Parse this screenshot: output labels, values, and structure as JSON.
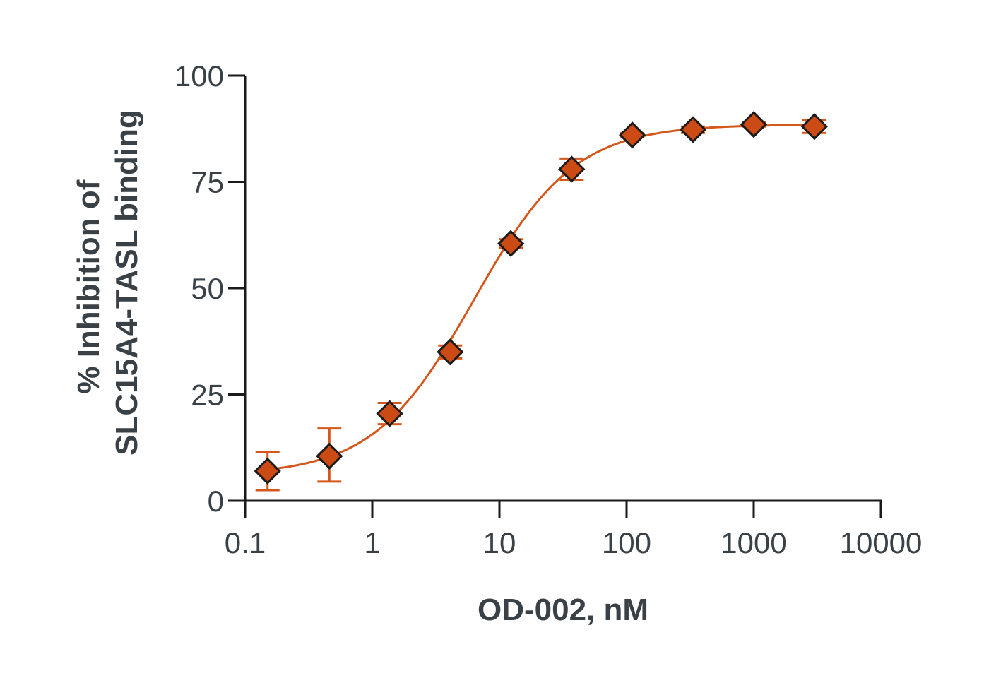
{
  "chart_data": {
    "type": "scatter",
    "xlabel": "OD-002, nM",
    "ylabel_lines": [
      "% Inhibition of",
      "SLC15A4-TASL binding"
    ],
    "x_scale": "log",
    "xlim": [
      0.1,
      10000
    ],
    "ylim": [
      0,
      100
    ],
    "x_ticks": [
      0.1,
      1,
      10,
      100,
      1000,
      10000
    ],
    "x_tick_labels": [
      "0.1",
      "1",
      "10",
      "100",
      "1000",
      "10000"
    ],
    "y_ticks": [
      0,
      25,
      50,
      75,
      100
    ],
    "y_tick_labels": [
      "0",
      "25",
      "50",
      "75",
      "100"
    ],
    "grid": false,
    "series": [
      {
        "marker": "diamond",
        "points": [
          {
            "x": 0.15,
            "y": 7,
            "err_low": 2.5,
            "err_high": 11.5
          },
          {
            "x": 0.46,
            "y": 10.5,
            "err_low": 4.5,
            "err_high": 17
          },
          {
            "x": 1.37,
            "y": 20.5,
            "err_low": 18,
            "err_high": 23
          },
          {
            "x": 4.1,
            "y": 35,
            "err_low": 33.5,
            "err_high": 36.5
          },
          {
            "x": 12.3,
            "y": 60.5,
            "err_low": 59.5,
            "err_high": 61.5
          },
          {
            "x": 37,
            "y": 78,
            "err_low": 75.5,
            "err_high": 80.5
          },
          {
            "x": 111,
            "y": 86,
            "err_low": 85.5,
            "err_high": 86.5
          },
          {
            "x": 333,
            "y": 87.3,
            "err_low": 86.5,
            "err_high": 88
          },
          {
            "x": 1000,
            "y": 88.5,
            "err_low": 88,
            "err_high": 89
          },
          {
            "x": 3000,
            "y": 88,
            "err_low": 86.5,
            "err_high": 89.5
          }
        ]
      }
    ],
    "fit": {
      "model": "4PL",
      "bottom": 6,
      "top": 88.5,
      "ec50": 6.3,
      "hill": 1.1
    },
    "colors": {
      "marker_fill": "#cc4a14",
      "marker_stroke": "#1a1a1a",
      "curve": "#d4581c",
      "error_bar": "#d4581c",
      "axis": "#1a1a1a",
      "text": "#3a4146"
    }
  }
}
